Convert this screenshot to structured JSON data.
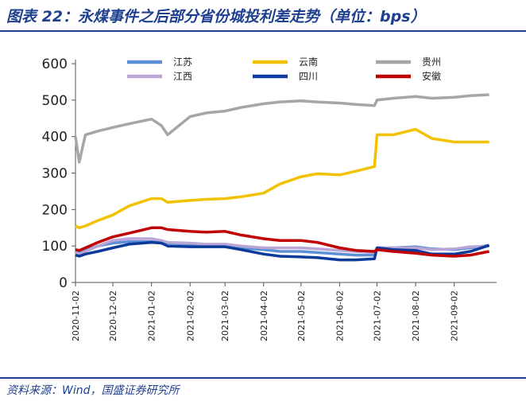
{
  "header": {
    "title": "图表 22：永煤事件之后部分省份城投利差走势（单位：bps）"
  },
  "footer": {
    "source": "资料来源：Wind，国盛证券研究所"
  },
  "chart_data": {
    "type": "line",
    "xlabel": "",
    "ylabel": "",
    "ylim": [
      0,
      600
    ],
    "yticks": [
      0,
      100,
      200,
      300,
      400,
      500,
      600
    ],
    "x_ticks": [
      "2020-11-02",
      "2020-12-02",
      "2021-01-02",
      "2021-02-02",
      "2021-03-02",
      "2021-04-02",
      "2021-05-02",
      "2021-06-02",
      "2021-07-02",
      "2021-08-02",
      "2021-09-02"
    ],
    "x": [
      "2020-11-02",
      "2020-11-05",
      "2020-11-10",
      "2020-11-20",
      "2020-12-02",
      "2020-12-15",
      "2021-01-02",
      "2021-01-10",
      "2021-01-15",
      "2021-02-02",
      "2021-02-15",
      "2021-03-02",
      "2021-03-15",
      "2021-04-02",
      "2021-04-15",
      "2021-05-02",
      "2021-05-15",
      "2021-06-02",
      "2021-06-15",
      "2021-06-30",
      "2021-07-02",
      "2021-07-15",
      "2021-08-02",
      "2021-08-15",
      "2021-09-02",
      "2021-09-15",
      "2021-09-30"
    ],
    "grid": false,
    "legend": "top",
    "series": [
      {
        "name": "江苏",
        "color": "#5b8fd6",
        "values": [
          80,
          82,
          88,
          100,
          108,
          112,
          112,
          110,
          108,
          105,
          103,
          100,
          95,
          90,
          85,
          85,
          82,
          78,
          75,
          75,
          95,
          95,
          98,
          92,
          90,
          95,
          102
        ]
      },
      {
        "name": "云南",
        "color": "#f2c200",
        "values": [
          155,
          150,
          155,
          170,
          185,
          210,
          230,
          230,
          220,
          225,
          228,
          230,
          235,
          245,
          270,
          290,
          298,
          295,
          305,
          318,
          405,
          405,
          420,
          395,
          385,
          385,
          385
        ]
      },
      {
        "name": "贵州",
        "color": "#a6a6a6",
        "values": [
          400,
          330,
          405,
          415,
          425,
          435,
          448,
          430,
          405,
          455,
          465,
          470,
          480,
          490,
          495,
          498,
          495,
          492,
          488,
          485,
          500,
          505,
          510,
          505,
          508,
          512,
          515
        ]
      },
      {
        "name": "江西",
        "color": "#b9a6d6",
        "values": [
          80,
          78,
          85,
          100,
          115,
          120,
          120,
          115,
          110,
          108,
          105,
          105,
          100,
          95,
          95,
          95,
          92,
          88,
          85,
          82,
          95,
          95,
          95,
          90,
          92,
          98,
          100
        ]
      },
      {
        "name": "四川",
        "color": "#0b3a9a",
        "values": [
          75,
          72,
          78,
          85,
          95,
          105,
          110,
          108,
          100,
          98,
          98,
          98,
          90,
          78,
          72,
          70,
          68,
          62,
          62,
          65,
          95,
          90,
          88,
          78,
          78,
          85,
          102
        ]
      },
      {
        "name": "安徽",
        "color": "#c00000",
        "values": [
          90,
          88,
          95,
          110,
          125,
          135,
          150,
          150,
          145,
          140,
          138,
          140,
          130,
          120,
          115,
          115,
          110,
          95,
          88,
          85,
          90,
          85,
          80,
          75,
          72,
          75,
          85
        ]
      }
    ]
  }
}
